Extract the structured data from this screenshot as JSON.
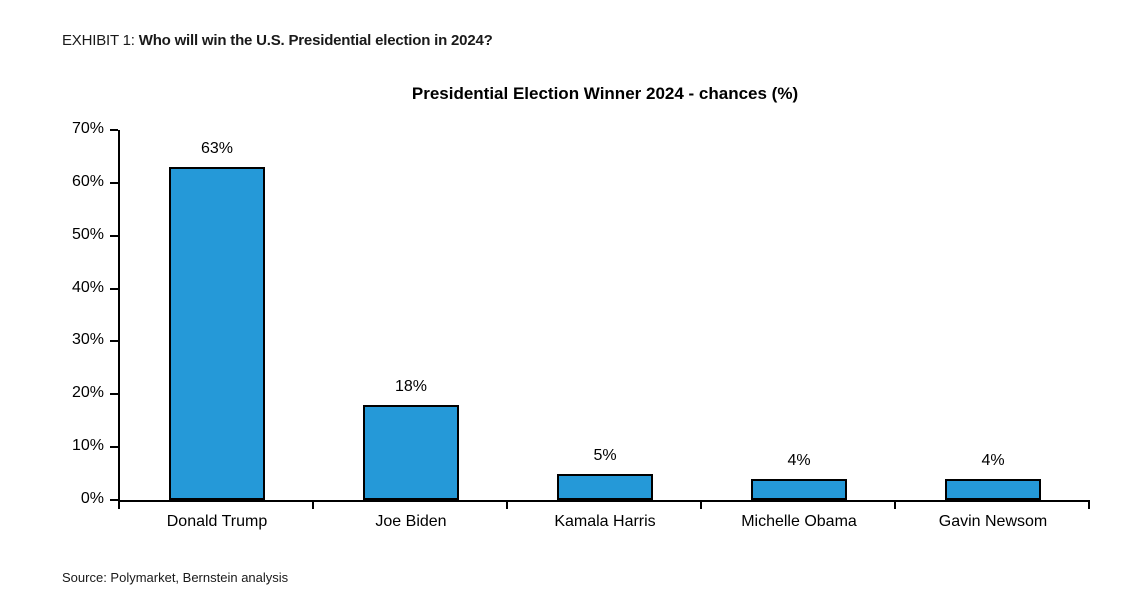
{
  "page": {
    "exhibit_label": "EXHIBIT 1:",
    "exhibit_title": "Who will win the U.S. Presidential election in 2024?",
    "source": "Source: Polymarket, Bernstein analysis"
  },
  "colors": {
    "bar_fill": "#2599D8",
    "bar_border": "#000000",
    "axis": "#000000",
    "text": "#000000"
  },
  "chart_data": {
    "type": "bar",
    "title": "Presidential Election Winner 2024 - chances (%)",
    "categories": [
      "Donald Trump",
      "Joe Biden",
      "Kamala Harris",
      "Michelle Obama",
      "Gavin Newsom"
    ],
    "values": [
      63,
      18,
      5,
      4,
      4
    ],
    "value_labels": [
      "63%",
      "18%",
      "5%",
      "4%",
      "4%"
    ],
    "xlabel": "",
    "ylabel": "",
    "ylim": [
      0,
      70
    ],
    "ytick_step": 10,
    "ytick_labels": [
      "0%",
      "10%",
      "20%",
      "30%",
      "40%",
      "50%",
      "60%",
      "70%"
    ],
    "grid": false,
    "legend": "none"
  }
}
